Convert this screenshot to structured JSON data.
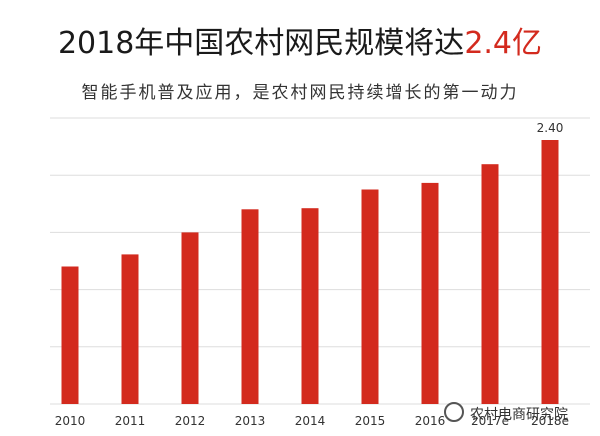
{
  "header": {
    "title_main": "2018年中国农村网民规模将达",
    "title_highlight": "2.4亿",
    "subtitle": "智能手机普及应用，是农村网民持续增长的第一动力"
  },
  "watermark": {
    "text": "农村电商研究院"
  },
  "colors": {
    "bar": "#d32a1e",
    "highlight": "#d32a1e",
    "grid": "#dddddd"
  },
  "chart_data": {
    "type": "bar",
    "categories": [
      "2010",
      "2011",
      "2012",
      "2013",
      "2014",
      "2015",
      "2016",
      "2017e",
      "2018e"
    ],
    "values": [
      1.25,
      1.36,
      1.56,
      1.77,
      1.78,
      1.95,
      2.01,
      2.18,
      2.4
    ],
    "data_labels": {
      "8": "2.40"
    },
    "ylim": [
      0,
      2.6
    ],
    "grid": true,
    "title": "",
    "xlabel": "",
    "ylabel": ""
  }
}
